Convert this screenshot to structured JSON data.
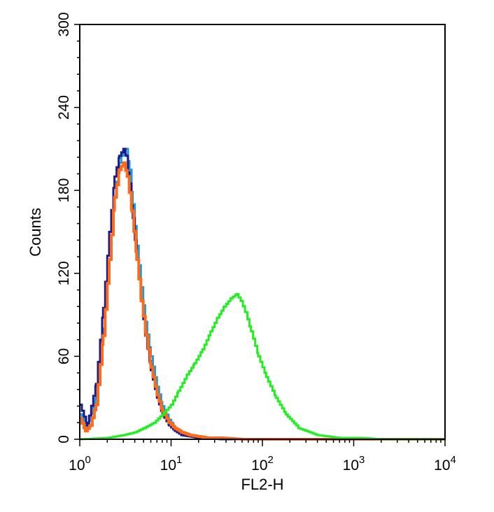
{
  "chart_data": {
    "type": "line",
    "title": "",
    "xlabel": "FL2-H",
    "ylabel": "Counts",
    "x_scale": "log",
    "xlim": [
      1,
      10000
    ],
    "ylim": [
      0,
      300
    ],
    "x_ticks": [
      {
        "base": "10",
        "exp": "0",
        "value": 1
      },
      {
        "base": "10",
        "exp": "1",
        "value": 10
      },
      {
        "base": "10",
        "exp": "2",
        "value": 100
      },
      {
        "base": "10",
        "exp": "3",
        "value": 1000
      },
      {
        "base": "10",
        "exp": "4",
        "value": 10000
      }
    ],
    "y_ticks": [
      "0",
      "60",
      "120",
      "180",
      "240",
      "300"
    ],
    "y_tick_values": [
      0,
      60,
      120,
      180,
      240,
      300
    ],
    "grid": false,
    "legend": "none",
    "series": [
      {
        "color": "#1a9bd7",
        "x": [
          1.0,
          1.2,
          1.5,
          1.8,
          2.1,
          2.4,
          2.7,
          3.0,
          3.2,
          3.5,
          3.8,
          4.2,
          4.7,
          5.2,
          6.0,
          7.0,
          8.0,
          9.5,
          11,
          13,
          16,
          20,
          25,
          35,
          60,
          120,
          300,
          1000,
          10000
        ],
        "y": [
          18,
          8,
          30,
          80,
          130,
          175,
          200,
          210,
          210,
          195,
          170,
          140,
          110,
          85,
          60,
          38,
          24,
          14,
          8,
          5,
          3,
          2,
          1,
          1,
          0,
          0,
          0,
          0,
          0
        ]
      },
      {
        "color": "#1a1a8c",
        "x": [
          1.0,
          1.2,
          1.5,
          1.8,
          2.1,
          2.4,
          2.7,
          3.0,
          3.2,
          3.5,
          3.8,
          4.2,
          4.7,
          5.2,
          6.0,
          7.0,
          8.0,
          9.5,
          11,
          13,
          16,
          20,
          25,
          35,
          60,
          120,
          300,
          1000,
          10000
        ],
        "y": [
          25,
          10,
          40,
          95,
          150,
          190,
          205,
          210,
          205,
          185,
          160,
          130,
          100,
          75,
          50,
          30,
          18,
          10,
          6,
          3,
          2,
          1,
          1,
          0,
          0,
          0,
          0,
          0,
          0
        ]
      },
      {
        "color": "#ff6a1a",
        "x": [
          1.0,
          1.15,
          1.3,
          1.5,
          1.8,
          2.1,
          2.4,
          2.7,
          3.0,
          3.3,
          3.7,
          4.2,
          4.7,
          5.3,
          6.0,
          7.0,
          8.0,
          9.5,
          11,
          13,
          16,
          20,
          25,
          35,
          60,
          120,
          300,
          1000,
          10000
        ],
        "y": [
          15,
          6,
          10,
          25,
          75,
          130,
          175,
          195,
          200,
          190,
          165,
          130,
          100,
          75,
          52,
          32,
          20,
          12,
          8,
          5,
          3,
          2,
          1,
          1,
          0,
          0,
          0,
          0,
          0
        ]
      },
      {
        "color": "#22ee22",
        "x": [
          1.0,
          2.0,
          3.0,
          4.0,
          5.0,
          6.5,
          8.0,
          10,
          12,
          15,
          18,
          22,
          27,
          32,
          38,
          45,
          52,
          58,
          65,
          75,
          90,
          110,
          140,
          180,
          250,
          400,
          700,
          1200,
          2000,
          10000
        ],
        "y": [
          0,
          1,
          3,
          5,
          8,
          12,
          18,
          25,
          35,
          47,
          55,
          65,
          78,
          88,
          96,
          102,
          105,
          100,
          92,
          78,
          60,
          45,
          30,
          18,
          8,
          3,
          1,
          1,
          0,
          0
        ]
      }
    ]
  }
}
